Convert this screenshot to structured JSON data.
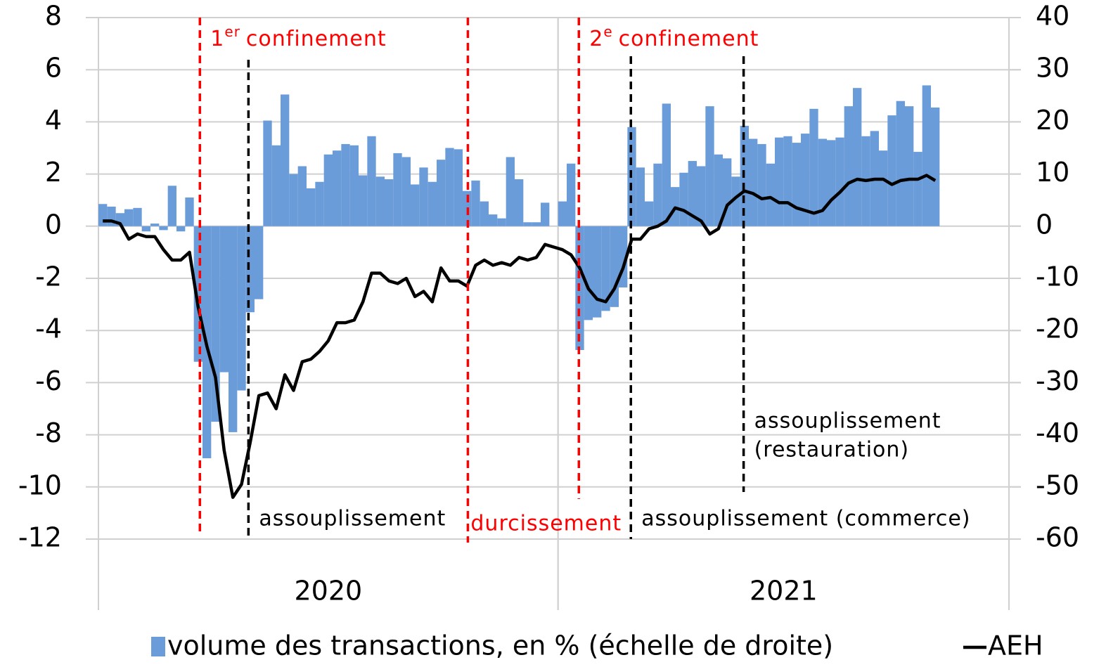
{
  "chart_data": {
    "type": "bar_line",
    "categories": [
      null,
      null,
      null,
      null,
      null,
      null,
      null,
      null,
      null,
      null,
      null,
      null,
      null,
      null,
      null,
      null,
      null,
      null,
      null,
      null,
      null,
      null,
      null,
      null,
      null,
      null,
      null,
      null,
      null,
      null,
      null,
      null,
      null,
      null,
      null,
      null,
      null,
      null,
      null,
      null,
      null,
      null,
      null,
      null,
      null,
      null,
      null,
      null,
      null,
      null,
      null,
      null,
      null,
      null,
      null,
      null,
      null,
      null,
      null,
      null,
      null,
      null,
      null,
      null,
      null,
      null,
      null,
      null,
      null,
      null,
      null,
      null,
      null,
      null,
      null,
      null,
      null,
      null,
      null,
      null,
      null,
      null,
      null,
      null,
      null,
      null,
      null,
      null,
      null,
      null,
      null,
      null,
      null,
      null,
      null,
      null,
      null,
      null,
      null,
      null,
      null,
      null,
      null,
      null,
      null
    ],
    "x_groups": [
      {
        "label": "2020",
        "start": 0,
        "end": 53
      },
      {
        "label": "2021",
        "start": 53,
        "end": 105
      }
    ],
    "series": [
      {
        "name": "volume des transactions, en % (échelle de droite)",
        "type": "bar",
        "axis": "y2",
        "color": "#6a9cd9",
        "values": [
          4.25,
          3.75,
          2.5,
          3.25,
          3.5,
          -1,
          0.5,
          -0.75,
          7.75,
          -1,
          5.5,
          -26,
          -44.5,
          -37.5,
          -28,
          -39.5,
          -31.5,
          -16.5,
          -14,
          20.25,
          15.5,
          25.25,
          10,
          11.5,
          7.25,
          8.5,
          13.75,
          14.5,
          15.75,
          15.5,
          9.75,
          17.25,
          9.5,
          9,
          14,
          13.25,
          8,
          11.25,
          8.5,
          12.75,
          15,
          14.75,
          6.75,
          8.75,
          4.75,
          2.25,
          1.5,
          13.25,
          9,
          0.75,
          0.75,
          4.5,
          0,
          4.75,
          12,
          -23.75,
          -18,
          -17.5,
          -16.25,
          -15.5,
          -11.75,
          19,
          11.25,
          4.75,
          12,
          23.5,
          7.5,
          10.25,
          12.5,
          11.5,
          23,
          13.75,
          13,
          9.5,
          19.25,
          16.75,
          15.75,
          12,
          17,
          17.25,
          16,
          17.75,
          22.5,
          16.75,
          16.5,
          17,
          23,
          26.5,
          17.25,
          18.25,
          14.5,
          21.25,
          24,
          23,
          14.25,
          27,
          22.75,
          null,
          null,
          null,
          null,
          null,
          null,
          null,
          null
        ]
      },
      {
        "name": "AEH",
        "type": "line",
        "axis": "y",
        "color": "#000000",
        "values": [
          0.2,
          0.2,
          0.1,
          -0.5,
          -0.3,
          -0.4,
          -0.4,
          -0.9,
          -1.3,
          -1.3,
          -1,
          -3.1,
          -4.6,
          -5.8,
          -8.6,
          -10.4,
          -9.9,
          -8.3,
          -6.5,
          -6.4,
          -7,
          -5.7,
          -6.3,
          -5.2,
          -5.1,
          -4.8,
          -4.4,
          -3.7,
          -3.7,
          -3.6,
          -2.9,
          -1.8,
          -1.8,
          -2.1,
          -2.2,
          -2,
          -2.7,
          -2.5,
          -2.9,
          -1.6,
          -2.1,
          -2.1,
          -2.3,
          -1.5,
          -1.3,
          -1.5,
          -1.4,
          -1.5,
          -1.2,
          -1.3,
          -1.2,
          -0.7,
          -0.8,
          -0.9,
          -1.1,
          -1.6,
          -2.4,
          -2.8,
          -2.9,
          -2.4,
          -1.6,
          -0.5,
          -0.5,
          -0.1,
          0,
          0.2,
          0.7,
          0.6,
          0.4,
          0.2,
          -0.3,
          -0.1,
          0.8,
          1.1,
          1.35,
          1.25,
          1.05,
          1.1,
          0.9,
          0.9,
          0.7,
          0.6,
          0.5,
          0.6,
          1,
          1.3,
          1.65,
          1.8,
          1.75,
          1.8,
          1.8,
          1.6,
          1.75,
          1.8,
          1.8,
          1.95,
          1.75,
          null,
          null,
          null,
          null,
          null,
          null,
          null,
          null
        ]
      }
    ],
    "ylim": [
      -12,
      8
    ],
    "yticks": [
      8,
      6,
      4,
      2,
      0,
      -2,
      -4,
      -6,
      -8,
      -10,
      -12
    ],
    "y2lim": [
      -60,
      40
    ],
    "y2ticks": [
      40,
      30,
      20,
      10,
      0,
      -10,
      -20,
      -30,
      -40,
      -50,
      -60
    ],
    "grid": true,
    "legend": "bottom",
    "events": [
      {
        "at": 11.7,
        "color": "#ff0000",
        "label_parts": [
          "1",
          "er",
          "confinement"
        ]
      },
      {
        "at": 17.3,
        "color": "#000000",
        "lines": [
          "assouplissement"
        ]
      },
      {
        "at": 42.6,
        "color": "#ff0000",
        "lines": [
          "durcissement"
        ]
      },
      {
        "at": 55.4,
        "color": "#ff0000",
        "label_parts": [
          "2",
          "e",
          "confinement"
        ]
      },
      {
        "at": 61.4,
        "color": "#000000",
        "lines": [
          "assouplissement (commerce)"
        ]
      },
      {
        "at": 74.4,
        "color": "#000000",
        "lines": [
          "assouplissement",
          "(restauration)"
        ]
      }
    ]
  }
}
